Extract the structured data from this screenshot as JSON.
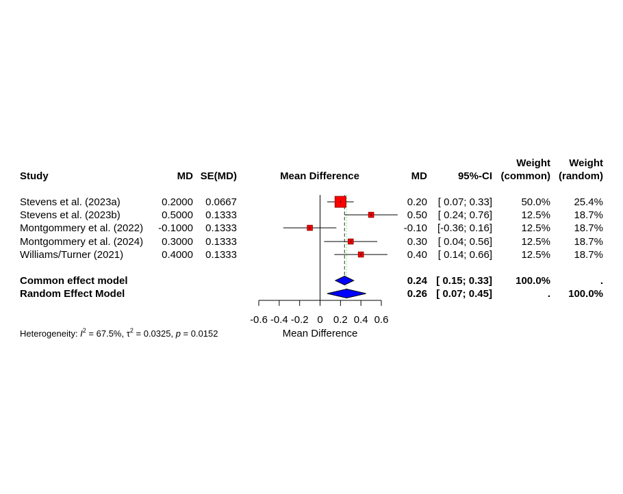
{
  "headers": {
    "study": "Study",
    "md": "MD",
    "se": "SE(MD)",
    "plot": "Mean Difference",
    "md2": "MD",
    "ci": "95%-CI",
    "w_common_top": "Weight",
    "w_common_bottom": "(common)",
    "w_random_top": "Weight",
    "w_random_bottom": "(random)"
  },
  "studies": [
    {
      "name": "Stevens et al. (2023a)",
      "md": "0.2000",
      "se": "0.0667",
      "md_fmt": "0.20",
      "ci": "[ 0.07; 0.33]",
      "w_common": "50.0%",
      "w_random": "25.4%"
    },
    {
      "name": "Stevens et al. (2023b)",
      "md": "0.5000",
      "se": "0.1333",
      "md_fmt": "0.50",
      "ci": "[ 0.24; 0.76]",
      "w_common": "12.5%",
      "w_random": "18.7%"
    },
    {
      "name": "Montgommery et al. (2022)",
      "md": "-0.1000",
      "se": "0.1333",
      "md_fmt": "-0.10",
      "ci": "[-0.36; 0.16]",
      "w_common": "12.5%",
      "w_random": "18.7%"
    },
    {
      "name": "Montgommery et al. (2024)",
      "md": "0.3000",
      "se": "0.1333",
      "md_fmt": "0.30",
      "ci": "[ 0.04; 0.56]",
      "w_common": "12.5%",
      "w_random": "18.7%"
    },
    {
      "name": "Williams/Turner (2021)",
      "md": "0.4000",
      "se": "0.1333",
      "md_fmt": "0.40",
      "ci": "[ 0.14; 0.66]",
      "w_common": "12.5%",
      "w_random": "18.7%"
    }
  ],
  "summaries": [
    {
      "name": "Common effect model",
      "md_fmt": "0.24",
      "ci": "[ 0.15; 0.33]",
      "w_common": "100.0%",
      "w_random": "."
    },
    {
      "name": "Random Effect Model",
      "md_fmt": "0.26",
      "ci": "[ 0.07; 0.45]",
      "w_common": ".",
      "w_random": "100.0%"
    }
  ],
  "heterogeneity": {
    "prefix": "Heterogeneity: ",
    "i2_symbol": "I",
    "i2_sup": "2",
    "i2_value": " = 67.5%, ",
    "tau_symbol": "τ",
    "tau_sup": "2",
    "tau_value": " = 0.0325, ",
    "p_symbol": "p",
    "p_value": " = 0.0152"
  },
  "colors": {
    "study_square": "#ff0000",
    "study_square_border": "#8b0000",
    "diamond": "#0000ff",
    "common_line": "#555555",
    "random_line": "#90ee90"
  },
  "chart_data": {
    "type": "forest",
    "xlabel": "Mean Difference",
    "xlim": [
      -0.6,
      0.6
    ],
    "xticks": [
      -0.6,
      -0.4,
      -0.2,
      0,
      0.2,
      0.4,
      0.6
    ],
    "xtick_labels": [
      "-0.6",
      "-0.4",
      "-0.2",
      "0",
      "0.2",
      "0.4",
      "0.6"
    ],
    "reference_line": 0,
    "studies": [
      {
        "name": "Stevens et al. (2023a)",
        "est": 0.2,
        "lower": 0.07,
        "upper": 0.33,
        "weight": 25.4
      },
      {
        "name": "Stevens et al. (2023b)",
        "est": 0.5,
        "lower": 0.24,
        "upper": 0.76,
        "weight": 18.7
      },
      {
        "name": "Montgommery et al. (2022)",
        "est": -0.1,
        "lower": -0.36,
        "upper": 0.16,
        "weight": 18.7
      },
      {
        "name": "Montgommery et al. (2024)",
        "est": 0.3,
        "lower": 0.04,
        "upper": 0.56,
        "weight": 18.7
      },
      {
        "name": "Williams/Turner (2021)",
        "est": 0.4,
        "lower": 0.14,
        "upper": 0.66,
        "weight": 18.7
      }
    ],
    "common": {
      "est": 0.24,
      "lower": 0.15,
      "upper": 0.33
    },
    "random": {
      "est": 0.26,
      "lower": 0.07,
      "upper": 0.45
    }
  }
}
